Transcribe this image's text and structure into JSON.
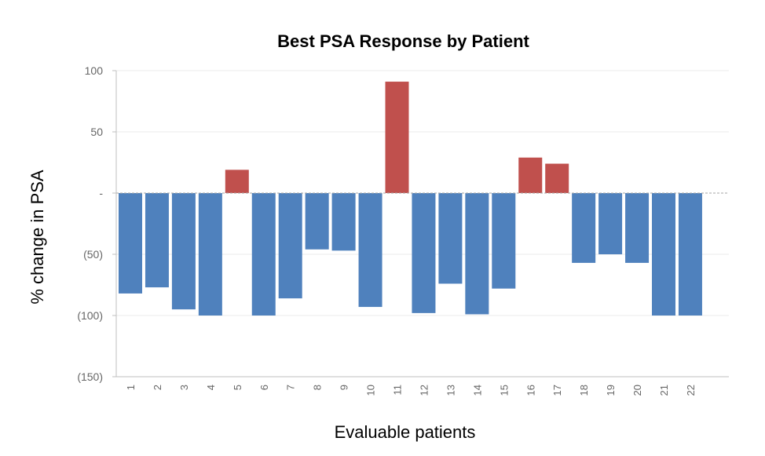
{
  "chart_data": {
    "type": "bar",
    "title": "Best PSA Response by Patient",
    "xlabel": "Evaluable patients",
    "ylabel": "% change in PSA",
    "categories": [
      "1",
      "2",
      "3",
      "4",
      "5",
      "6",
      "7",
      "8",
      "9",
      "10",
      "11",
      "12",
      "13",
      "14",
      "15",
      "16",
      "17",
      "18",
      "19",
      "20",
      "21",
      "22"
    ],
    "values": [
      -82,
      -77,
      -95,
      -100,
      19,
      -100,
      -86,
      -46,
      -47,
      -93,
      91,
      -98,
      -74,
      -99,
      -78,
      29,
      24,
      -57,
      -50,
      -57,
      -100,
      -100
    ],
    "ylim": [
      -150,
      100
    ],
    "yticks": [
      {
        "value": 100,
        "label": "100"
      },
      {
        "value": 50,
        "label": "50"
      },
      {
        "value": 0,
        "label": "-"
      },
      {
        "value": -50,
        "label": "(50)"
      },
      {
        "value": -100,
        "label": "(100)"
      },
      {
        "value": -150,
        "label": "(150)"
      }
    ],
    "grid": true,
    "colors": {
      "negative": "#4f81bd",
      "positive": "#c0504d",
      "grid": "#ebebeb",
      "axis": "#bfbfbf",
      "zero_line": "#a6a6a6"
    }
  }
}
